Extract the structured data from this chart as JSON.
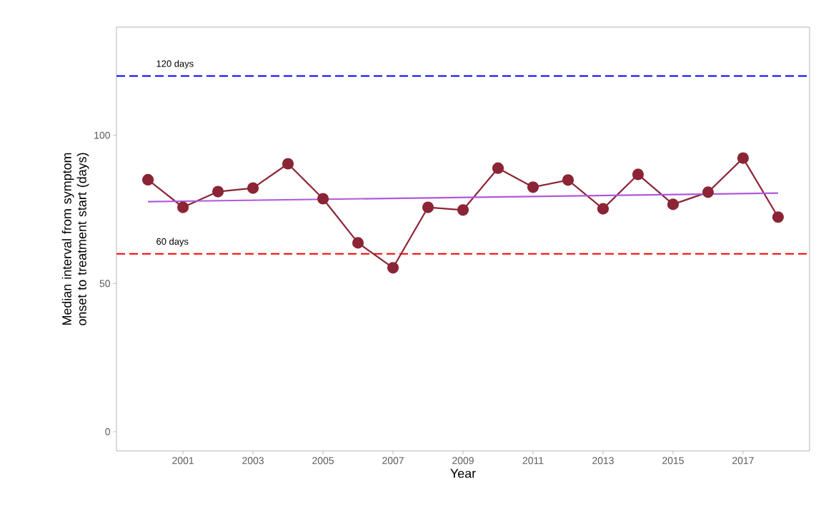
{
  "chart_data": {
    "type": "line",
    "xlabel": "Year",
    "ylabel": "Median interval from symptom onset to treatment start (days)",
    "x": [
      2000,
      2001,
      2002,
      2003,
      2004,
      2005,
      2006,
      2007,
      2008,
      2009,
      2010,
      2011,
      2012,
      2013,
      2014,
      2015,
      2016,
      2017,
      2018
    ],
    "marker": "circle",
    "series": [
      {
        "color": "#8b2535",
        "values": [
          85,
          75.7,
          81,
          82.2,
          90.4,
          78.6,
          63.7,
          55.3,
          75.7,
          74.8,
          88.9,
          82.5,
          84.9,
          75.2,
          86.8,
          76.7,
          80.8,
          92.3,
          72.4
        ]
      },
      {
        "type": "line",
        "x": [
          2000,
          2018
        ],
        "values": [
          77.6,
          80.5
        ],
        "color": "#b158dc",
        "marker": "none"
      }
    ],
    "xlim": [
      1999.1,
      2018.9
    ],
    "ylim": [
      -6.5,
      136.5
    ],
    "xticks": [
      2001,
      2003,
      2005,
      2007,
      2009,
      2011,
      2013,
      2015,
      2017
    ],
    "yticks": [
      0,
      50,
      100
    ],
    "ref_lines": [
      {
        "axis": "y",
        "value": 120,
        "label": "120 days",
        "color": "#0000ff",
        "line_style": "dashed"
      },
      {
        "axis": "y",
        "value": 60,
        "label": "60 days",
        "color": "#ff0000",
        "line_style": "dashed"
      }
    ]
  }
}
